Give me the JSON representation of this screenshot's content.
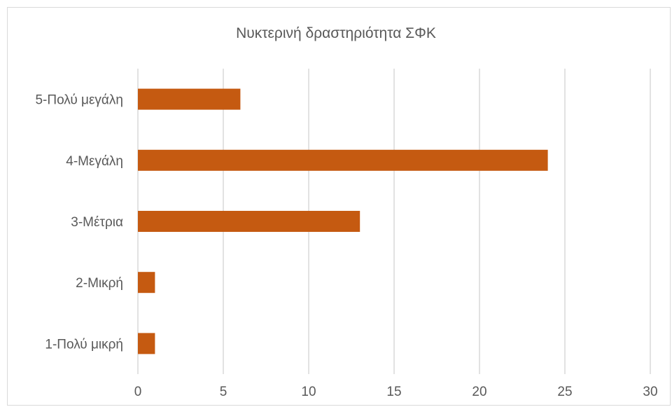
{
  "chart_data": {
    "type": "bar",
    "orientation": "horizontal",
    "title": "Νυκτερινή δραστηριότητα ΣΦΚ",
    "categories": [
      "5-Πολύ μεγάλη",
      "4-Μεγάλη",
      "3-Μέτρια",
      "2-Μικρή",
      "1-Πολύ μικρή"
    ],
    "values": [
      6,
      24,
      13,
      1,
      1
    ],
    "xlim": [
      0,
      30
    ],
    "xticks": [
      0,
      5,
      10,
      15,
      20,
      25,
      30
    ],
    "grid": true,
    "legend": "none",
    "bar_color": "#c55a11"
  }
}
